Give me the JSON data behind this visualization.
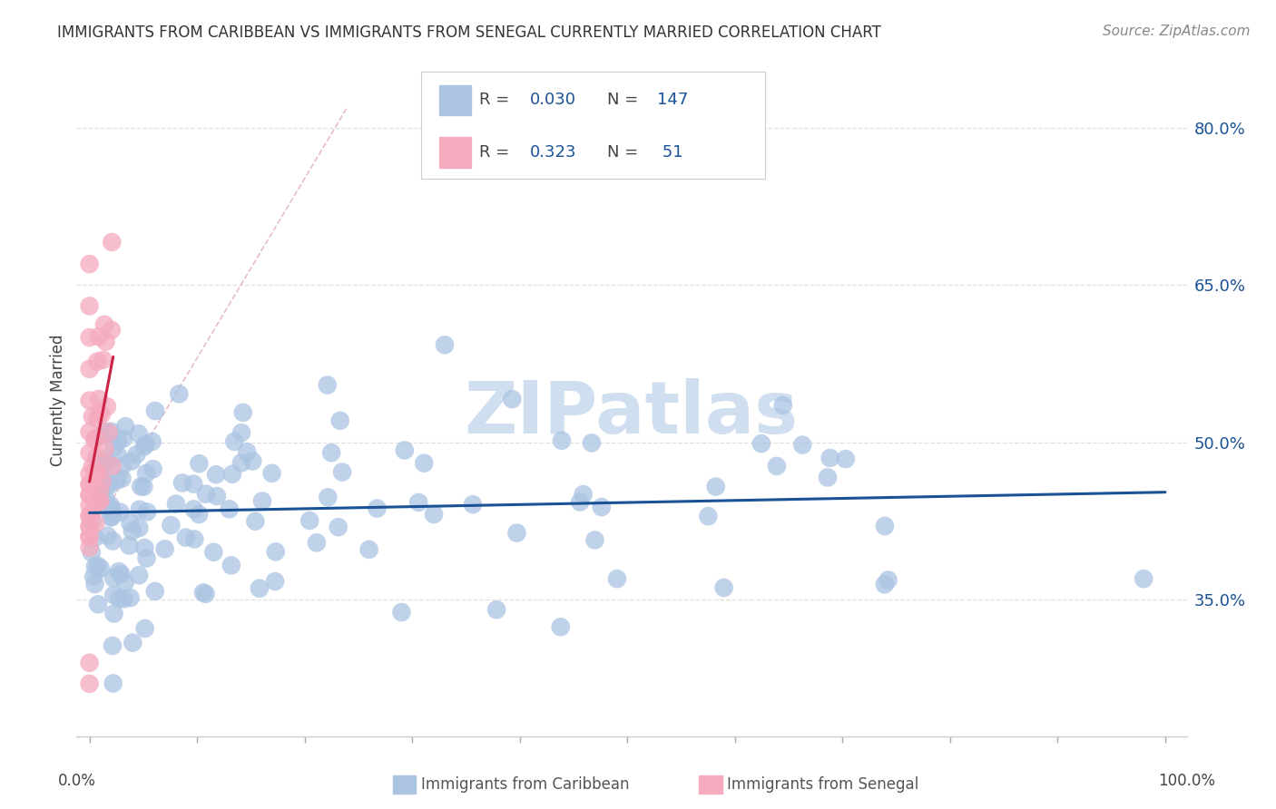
{
  "title": "IMMIGRANTS FROM CARIBBEAN VS IMMIGRANTS FROM SENEGAL CURRENTLY MARRIED CORRELATION CHART",
  "source": "Source: ZipAtlas.com",
  "ylabel": "Currently Married",
  "caribbean_R": 0.03,
  "caribbean_N": 147,
  "senegal_R": 0.323,
  "senegal_N": 51,
  "caribbean_color": "#aac4e2",
  "senegal_color": "#f5aabe",
  "regression_caribbean_color": "#1a5296",
  "regression_senegal_color": "#cc2244",
  "diag_color": "#e8a0b0",
  "watermark": "ZIPatlas",
  "watermark_color": "#d0dff0",
  "y_tick_vals": [
    0.35,
    0.5,
    0.65,
    0.8
  ],
  "y_tick_labels": [
    "35.0%",
    "50.0%",
    "65.0%",
    "80.0%"
  ],
  "xlim": [
    -0.012,
    1.02
  ],
  "ylim": [
    0.22,
    0.86
  ]
}
